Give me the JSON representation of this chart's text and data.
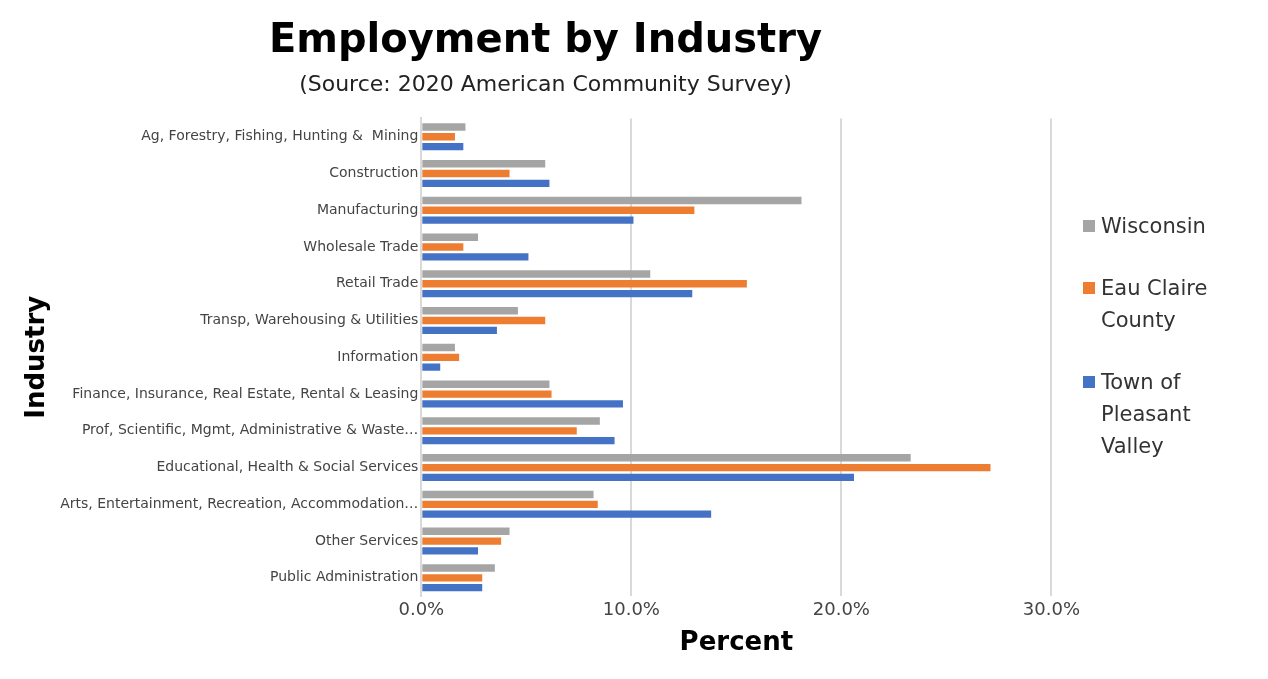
{
  "chart_data": {
    "type": "bar",
    "orientation": "horizontal",
    "title": "Employment by Industry",
    "subtitle": "(Source: 2020 American Community Survey)",
    "xlabel": "Percent",
    "ylabel": "Industry",
    "categories": [
      "Ag, Forestry, Fishing, Hunting &  Mining",
      "Construction",
      "Manufacturing",
      "Wholesale Trade",
      "Retail Trade",
      "Transp, Warehousing & Utilities",
      "Information",
      "Finance, Insurance, Real Estate, Rental & Leasing",
      "Prof, Scientific, Mgmt, Administrative & Waste…",
      "Educational, Health & Social Services",
      "Arts, Entertainment, Recreation, Accommodation…",
      "Other Services",
      "Public Administration"
    ],
    "series": [
      {
        "name": "Wisconsin",
        "color": "#a5a5a5",
        "values": [
          2.1,
          5.9,
          18.1,
          2.7,
          10.9,
          4.6,
          1.6,
          6.1,
          8.5,
          23.3,
          8.2,
          4.2,
          3.5
        ]
      },
      {
        "name": "Eau Claire County",
        "color": "#ed7d31",
        "values": [
          1.6,
          4.2,
          13.0,
          2.0,
          15.5,
          5.9,
          1.8,
          6.2,
          7.4,
          27.1,
          8.4,
          3.8,
          2.9
        ]
      },
      {
        "name": "Town of Pleasant Valley",
        "color": "#4472c4",
        "values": [
          2.0,
          6.1,
          10.1,
          5.1,
          12.9,
          3.6,
          0.9,
          9.6,
          9.2,
          20.6,
          13.8,
          2.7,
          2.9
        ]
      }
    ],
    "xlim": [
      0,
      30
    ],
    "xticks": [
      {
        "value": 0,
        "label": "0.0%"
      },
      {
        "value": 10,
        "label": "10.0%"
      },
      {
        "value": 20,
        "label": "20.0%"
      },
      {
        "value": 30,
        "label": "30.0%"
      }
    ],
    "grid": "x",
    "legend": "right"
  }
}
